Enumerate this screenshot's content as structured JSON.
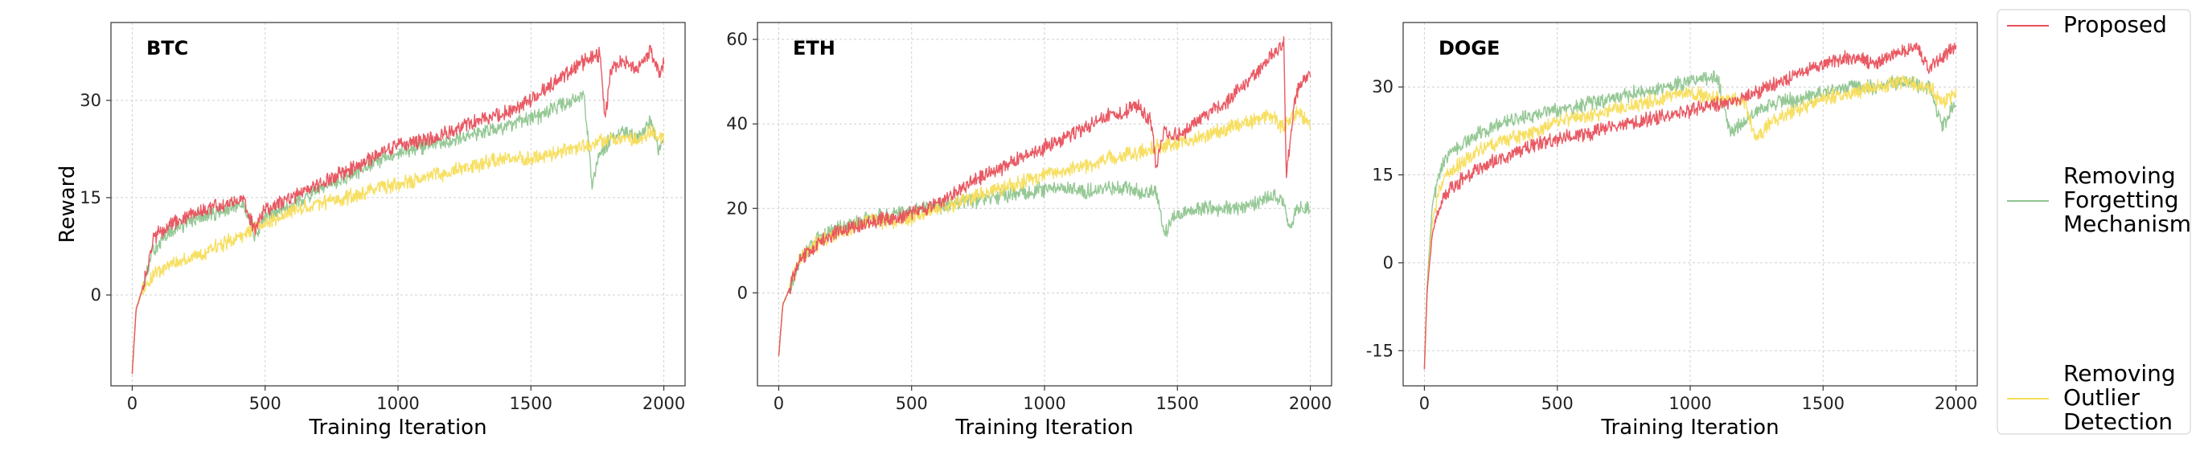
{
  "colors": {
    "proposed": "#e8505b",
    "forgetting": "#8fc58f",
    "outlier": "#f7dd5a",
    "grid": "#cfcfcf",
    "axis": "#333333"
  },
  "legend": {
    "placement": "right",
    "entries": [
      {
        "label_lines": [
          "Proposed"
        ],
        "series": "proposed"
      },
      {
        "label_lines": [
          "Removing",
          "Forgetting",
          "Mechanism"
        ],
        "series": "forgetting"
      },
      {
        "label_lines": [
          "Removing",
          "Outlier",
          "Detection"
        ],
        "series": "outlier"
      }
    ]
  },
  "chart_data": [
    {
      "type": "line",
      "title": "BTC",
      "xlabel": "Training Iteration",
      "ylabel": "Reward",
      "xlim": [
        -80,
        2080
      ],
      "ylim": [
        -14,
        42
      ],
      "xticks": [
        0,
        500,
        1000,
        1500,
        2000
      ],
      "yticks": [
        0,
        15,
        30
      ],
      "grid": true,
      "series": [
        {
          "key": "proposed",
          "name": "Proposed",
          "x": [
            0,
            15,
            40,
            80,
            150,
            250,
            350,
            420,
            450,
            460,
            500,
            600,
            700,
            800,
            900,
            1000,
            1100,
            1200,
            1300,
            1400,
            1500,
            1600,
            1700,
            1760,
            1780,
            1800,
            1850,
            1900,
            1950,
            1980,
            2000
          ],
          "values": [
            -12,
            -2,
            1,
            9,
            11,
            13,
            14,
            15,
            11,
            10,
            13,
            15,
            17,
            19,
            21,
            23,
            24,
            25,
            27,
            28,
            30,
            33,
            36,
            37,
            27,
            35,
            36,
            35,
            38,
            34,
            36
          ]
        },
        {
          "key": "forgetting",
          "name": "Removing Forgetting Mechanism",
          "x": [
            0,
            15,
            40,
            80,
            150,
            250,
            350,
            420,
            450,
            460,
            500,
            600,
            700,
            800,
            900,
            1000,
            1100,
            1200,
            1300,
            1400,
            1500,
            1600,
            1700,
            1730,
            1750,
            1800,
            1850,
            1900,
            1950,
            1980,
            2000
          ],
          "values": [
            -12,
            -2,
            1,
            7,
            10,
            12,
            13,
            14,
            11,
            9,
            12,
            14,
            16,
            18,
            20,
            22,
            23,
            24,
            25,
            26,
            27,
            29,
            31,
            17,
            21,
            24,
            25,
            24,
            27,
            22,
            24
          ]
        },
        {
          "key": "outlier",
          "name": "Removing Outlier Detection",
          "x": [
            0,
            15,
            40,
            80,
            150,
            250,
            350,
            450,
            500,
            600,
            700,
            800,
            900,
            1000,
            1100,
            1200,
            1300,
            1400,
            1500,
            1600,
            1700,
            1800,
            1900,
            1950,
            2000
          ],
          "values": [
            -12,
            -2,
            1,
            3,
            5,
            6,
            8,
            10,
            11,
            13,
            14,
            15,
            16,
            17,
            18,
            19,
            20,
            21,
            21,
            22,
            23,
            24,
            24,
            25,
            24
          ]
        }
      ]
    },
    {
      "type": "line",
      "title": "ETH",
      "xlabel": "Training Iteration",
      "ylabel": "",
      "xlim": [
        -80,
        2080
      ],
      "ylim": [
        -22,
        64
      ],
      "xticks": [
        0,
        500,
        1000,
        1500,
        2000
      ],
      "yticks": [
        0,
        20,
        40,
        60
      ],
      "grid": true,
      "series": [
        {
          "key": "proposed",
          "name": "Proposed",
          "x": [
            0,
            15,
            40,
            80,
            150,
            250,
            350,
            450,
            550,
            650,
            700,
            750,
            850,
            950,
            1050,
            1150,
            1250,
            1350,
            1400,
            1420,
            1450,
            1500,
            1600,
            1700,
            1800,
            1850,
            1900,
            1910,
            1940,
            1960,
            2000
          ],
          "values": [
            -15,
            -3,
            1,
            8,
            12,
            15,
            17,
            18,
            20,
            23,
            25,
            27,
            30,
            33,
            36,
            39,
            42,
            44,
            41,
            30,
            38,
            37,
            42,
            46,
            52,
            56,
            59,
            28,
            45,
            49,
            52
          ]
        },
        {
          "key": "forgetting",
          "name": "Removing Forgetting Mechanism",
          "x": [
            0,
            15,
            40,
            80,
            150,
            250,
            350,
            450,
            550,
            650,
            750,
            850,
            950,
            1050,
            1150,
            1250,
            1350,
            1420,
            1450,
            1480,
            1500,
            1600,
            1700,
            1800,
            1850,
            1900,
            1920,
            1950,
            2000
          ],
          "values": [
            -15,
            -3,
            1,
            8,
            13,
            16,
            18,
            19,
            20,
            21,
            22,
            23,
            24,
            25,
            24,
            25,
            24,
            24,
            14,
            17,
            19,
            20,
            20,
            21,
            23,
            22,
            15,
            20,
            20
          ]
        },
        {
          "key": "outlier",
          "name": "Removing Outlier Detection",
          "x": [
            0,
            15,
            40,
            80,
            150,
            250,
            350,
            450,
            550,
            650,
            750,
            850,
            950,
            1050,
            1150,
            1250,
            1350,
            1450,
            1550,
            1650,
            1750,
            1850,
            1900,
            1950,
            2000
          ],
          "values": [
            -15,
            -3,
            1,
            8,
            12,
            15,
            17,
            17,
            19,
            21,
            23,
            25,
            27,
            29,
            30,
            32,
            33,
            35,
            36,
            38,
            40,
            42,
            39,
            43,
            40
          ]
        }
      ]
    },
    {
      "type": "line",
      "title": "DOGE",
      "xlabel": "Training Iteration",
      "ylabel": "",
      "xlim": [
        -80,
        2080
      ],
      "ylim": [
        -21,
        41
      ],
      "xticks": [
        0,
        500,
        1000,
        1500,
        2000
      ],
      "yticks": [
        -15,
        0,
        15,
        30
      ],
      "grid": true,
      "series": [
        {
          "key": "proposed",
          "name": "Proposed",
          "x": [
            0,
            10,
            30,
            60,
            100,
            200,
            300,
            400,
            500,
            600,
            700,
            800,
            900,
            1000,
            1100,
            1200,
            1300,
            1400,
            1500,
            1600,
            1700,
            1800,
            1850,
            1900,
            1950,
            2000
          ],
          "values": [
            -18,
            -5,
            5,
            10,
            13,
            16,
            18,
            20,
            21,
            22,
            23,
            24,
            25,
            26,
            27,
            28,
            30,
            32,
            34,
            35,
            34,
            36,
            37,
            33,
            35,
            37
          ]
        },
        {
          "key": "forgetting",
          "name": "Removing Forgetting Mechanism",
          "x": [
            0,
            10,
            30,
            60,
            100,
            200,
            300,
            400,
            500,
            600,
            700,
            800,
            900,
            1000,
            1100,
            1150,
            1200,
            1250,
            1300,
            1400,
            1500,
            1600,
            1700,
            1800,
            1900,
            1950,
            1980,
            2000
          ],
          "values": [
            -18,
            -4,
            10,
            16,
            19,
            22,
            24,
            25,
            26,
            27,
            28,
            29,
            30,
            31,
            32,
            22,
            24,
            26,
            27,
            28,
            29,
            30,
            30,
            31,
            30,
            23,
            26,
            28
          ]
        },
        {
          "key": "outlier",
          "name": "Removing Outlier Detection",
          "x": [
            0,
            10,
            30,
            60,
            100,
            200,
            300,
            400,
            500,
            600,
            700,
            800,
            900,
            1000,
            1100,
            1200,
            1250,
            1300,
            1400,
            1500,
            1600,
            1700,
            1800,
            1900,
            1950,
            2000
          ],
          "values": [
            -18,
            -5,
            7,
            13,
            16,
            19,
            21,
            22,
            24,
            25,
            26,
            27,
            28,
            29,
            28,
            28,
            21,
            24,
            26,
            28,
            29,
            30,
            31,
            30,
            27,
            29
          ]
        }
      ]
    }
  ]
}
